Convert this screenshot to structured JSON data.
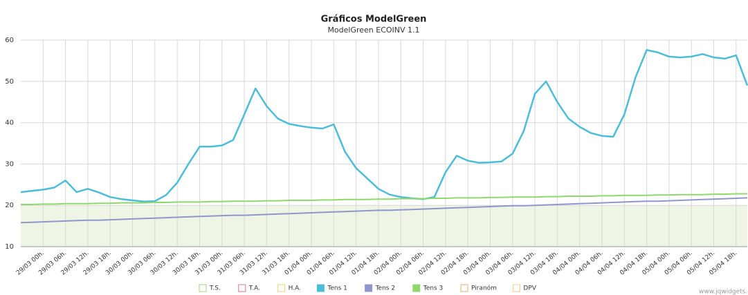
{
  "chart_data": {
    "type": "line",
    "title": "Gráficos ModelGreen",
    "subtitle": "ModelGreen ECOINV 1.1",
    "credit": "www.jqwidgets.com",
    "x": [
      -6,
      -3,
      0,
      3,
      6,
      9,
      12,
      15,
      18,
      21,
      24,
      27,
      30,
      33,
      36,
      39,
      42,
      45,
      48,
      51,
      54,
      57,
      60,
      63,
      66,
      69,
      72,
      75,
      78,
      81,
      84,
      87,
      90,
      93,
      96,
      99,
      102,
      105,
      108,
      111,
      114,
      117,
      120,
      123,
      126,
      129,
      132,
      135,
      138,
      141,
      144,
      147,
      150,
      153,
      156,
      159,
      162,
      165,
      168,
      171,
      174,
      177,
      180,
      183,
      186,
      189
    ],
    "xlim": [
      -6,
      189
    ],
    "xticks": [
      {
        "value": 0,
        "label": "29/03 00h."
      },
      {
        "value": 6,
        "label": "29/03 06h."
      },
      {
        "value": 12,
        "label": "29/03 12h."
      },
      {
        "value": 18,
        "label": "29/03 18h."
      },
      {
        "value": 24,
        "label": "30/03 00h."
      },
      {
        "value": 30,
        "label": "30/03 06h."
      },
      {
        "value": 36,
        "label": "30/03 12h."
      },
      {
        "value": 42,
        "label": "30/03 18h."
      },
      {
        "value": 48,
        "label": "31/03 00h."
      },
      {
        "value": 54,
        "label": "31/03 06h."
      },
      {
        "value": 60,
        "label": "31/03 12h."
      },
      {
        "value": 66,
        "label": "31/03 18h."
      },
      {
        "value": 72,
        "label": "01/04 00h."
      },
      {
        "value": 78,
        "label": "01/04 06h."
      },
      {
        "value": 84,
        "label": "01/04 12h."
      },
      {
        "value": 90,
        "label": "01/04 18h."
      },
      {
        "value": 96,
        "label": "02/04 00h."
      },
      {
        "value": 102,
        "label": "02/04 06h."
      },
      {
        "value": 108,
        "label": "02/04 12h."
      },
      {
        "value": 114,
        "label": "02/04 18h."
      },
      {
        "value": 120,
        "label": "03/04 00h."
      },
      {
        "value": 126,
        "label": "03/04 06h."
      },
      {
        "value": 132,
        "label": "03/04 12h."
      },
      {
        "value": 138,
        "label": "03/04 18h."
      },
      {
        "value": 144,
        "label": "04/04 00h."
      },
      {
        "value": 150,
        "label": "04/04 06h."
      },
      {
        "value": 156,
        "label": "04/04 12h."
      },
      {
        "value": 162,
        "label": "04/04 18h."
      },
      {
        "value": 168,
        "label": "05/04 00h."
      },
      {
        "value": 174,
        "label": "05/04 06h."
      },
      {
        "value": 180,
        "label": "05/04 12h."
      },
      {
        "value": 186,
        "label": "05/04 18h."
      }
    ],
    "ylim": [
      10,
      60
    ],
    "yticks": [
      10,
      20,
      30,
      40,
      50,
      60
    ],
    "grid": true,
    "bands": [
      {
        "from": 10,
        "to": 20,
        "color": "#eef5e4"
      }
    ],
    "series": [
      {
        "name": "T.S.",
        "color": "#9fd47f",
        "visible": false
      },
      {
        "name": "T.A.",
        "color": "#e86b9a",
        "visible": false
      },
      {
        "name": "H.A.",
        "color": "#f0d070",
        "visible": false
      },
      {
        "name": "Tens 1",
        "color": "#4bbdd8",
        "visible": true,
        "values": [
          23.2,
          23.5,
          23.8,
          24.3,
          26,
          23.2,
          24,
          23.1,
          22,
          21.5,
          21.2,
          20.9,
          21,
          22.5,
          25.5,
          30,
          34.2,
          34.2,
          34.5,
          35.8,
          42,
          48.3,
          44,
          41,
          39.7,
          39.2,
          38.8,
          38.6,
          39.6,
          33,
          29,
          26.5,
          24,
          22.6,
          22,
          21.7,
          21.5,
          22,
          28,
          32,
          30.8,
          30.3,
          30.4,
          30.6,
          32.5,
          38,
          47,
          50,
          45,
          41,
          39,
          37.5,
          36.8,
          36.6,
          42,
          51,
          57.6,
          57,
          56,
          55.8,
          56,
          56.6,
          55.8,
          55.5,
          56.3,
          49
        ]
      },
      {
        "name": "Tens 2",
        "color": "#8f96cc",
        "visible": true,
        "values": [
          15.8,
          15.9,
          16.0,
          16.1,
          16.2,
          16.3,
          16.4,
          16.4,
          16.5,
          16.6,
          16.7,
          16.8,
          16.9,
          17.0,
          17.1,
          17.2,
          17.3,
          17.4,
          17.5,
          17.6,
          17.6,
          17.7,
          17.8,
          17.9,
          18.0,
          18.1,
          18.2,
          18.3,
          18.4,
          18.5,
          18.6,
          18.7,
          18.8,
          18.8,
          18.9,
          19.0,
          19.1,
          19.2,
          19.3,
          19.4,
          19.5,
          19.6,
          19.7,
          19.8,
          19.9,
          19.9,
          20.0,
          20.1,
          20.2,
          20.3,
          20.4,
          20.5,
          20.6,
          20.7,
          20.8,
          20.9,
          21.0,
          21.0,
          21.1,
          21.2,
          21.3,
          21.4,
          21.5,
          21.6,
          21.7,
          21.8
        ]
      },
      {
        "name": "Tens 3",
        "color": "#8fd96b",
        "visible": true,
        "values": [
          20.2,
          20.2,
          20.3,
          20.3,
          20.4,
          20.4,
          20.4,
          20.5,
          20.5,
          20.6,
          20.6,
          20.6,
          20.7,
          20.7,
          20.8,
          20.8,
          20.8,
          20.9,
          20.9,
          21.0,
          21.0,
          21.0,
          21.1,
          21.1,
          21.2,
          21.2,
          21.2,
          21.3,
          21.3,
          21.4,
          21.4,
          21.4,
          21.5,
          21.5,
          21.6,
          21.6,
          21.6,
          21.7,
          21.7,
          21.8,
          21.8,
          21.8,
          21.9,
          21.9,
          22.0,
          22.0,
          22.0,
          22.1,
          22.1,
          22.2,
          22.2,
          22.2,
          22.3,
          22.3,
          22.4,
          22.4,
          22.4,
          22.5,
          22.5,
          22.6,
          22.6,
          22.6,
          22.7,
          22.7,
          22.8,
          22.8
        ]
      },
      {
        "name": "Piranóm",
        "color": "#f2a66a",
        "visible": false
      },
      {
        "name": "DPV",
        "color": "#f5c98c",
        "visible": false
      }
    ]
  }
}
